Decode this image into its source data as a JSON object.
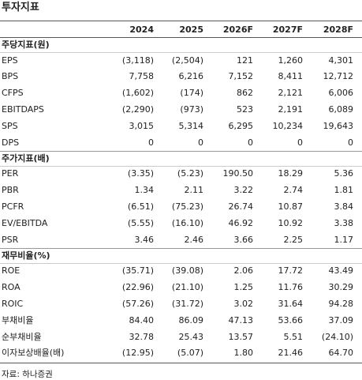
{
  "header": {
    "title": "투자지표"
  },
  "table": {
    "columns": [
      "2024",
      "2025",
      "2026F",
      "2027F",
      "2028F"
    ],
    "sections": [
      {
        "title": "주당지표(원)",
        "rows": [
          {
            "label": "EPS",
            "values": [
              "(3,118)",
              "(2,504)",
              "121",
              "1,260",
              "4,301"
            ]
          },
          {
            "label": "BPS",
            "values": [
              "7,758",
              "6,216",
              "7,152",
              "8,411",
              "12,712"
            ]
          },
          {
            "label": "CFPS",
            "values": [
              "(1,602)",
              "(174)",
              "862",
              "2,121",
              "6,006"
            ]
          },
          {
            "label": "EBITDAPS",
            "values": [
              "(2,290)",
              "(973)",
              "523",
              "2,191",
              "6,089"
            ]
          },
          {
            "label": "SPS",
            "values": [
              "3,015",
              "5,314",
              "6,295",
              "10,234",
              "19,643"
            ]
          },
          {
            "label": "DPS",
            "values": [
              "0",
              "0",
              "0",
              "0",
              "0"
            ]
          }
        ]
      },
      {
        "title": "주가지표(배)",
        "rows": [
          {
            "label": "PER",
            "values": [
              "(3.35)",
              "(5.23)",
              "190.50",
              "18.29",
              "5.36"
            ]
          },
          {
            "label": "PBR",
            "values": [
              "1.34",
              "2.11",
              "3.22",
              "2.74",
              "1.81"
            ]
          },
          {
            "label": "PCFR",
            "values": [
              "(6.51)",
              "(75.23)",
              "26.74",
              "10.87",
              "3.84"
            ]
          },
          {
            "label": "EV/EBITDA",
            "values": [
              "(5.55)",
              "(16.10)",
              "46.92",
              "10.92",
              "3.38"
            ]
          },
          {
            "label": "PSR",
            "values": [
              "3.46",
              "2.46",
              "3.66",
              "2.25",
              "1.17"
            ]
          }
        ]
      },
      {
        "title": "재무비율(%)",
        "rows": [
          {
            "label": "ROE",
            "values": [
              "(35.71)",
              "(39.08)",
              "2.06",
              "17.72",
              "43.49"
            ]
          },
          {
            "label": "ROA",
            "values": [
              "(22.96)",
              "(21.10)",
              "1.25",
              "11.76",
              "30.29"
            ]
          },
          {
            "label": "ROIC",
            "values": [
              "(57.26)",
              "(31.72)",
              "3.02",
              "31.64",
              "94.28"
            ]
          },
          {
            "label": "부채비율",
            "values": [
              "84.40",
              "86.09",
              "47.13",
              "53.66",
              "37.09"
            ]
          },
          {
            "label": "순부채비율",
            "values": [
              "32.78",
              "25.43",
              "13.57",
              "5.51",
              "(24.10)"
            ]
          },
          {
            "label": "이자보상배율(배)",
            "values": [
              "(12.95)",
              "(5.07)",
              "1.80",
              "21.46",
              "64.70"
            ]
          }
        ]
      }
    ]
  },
  "source": "자료: 하나증권"
}
